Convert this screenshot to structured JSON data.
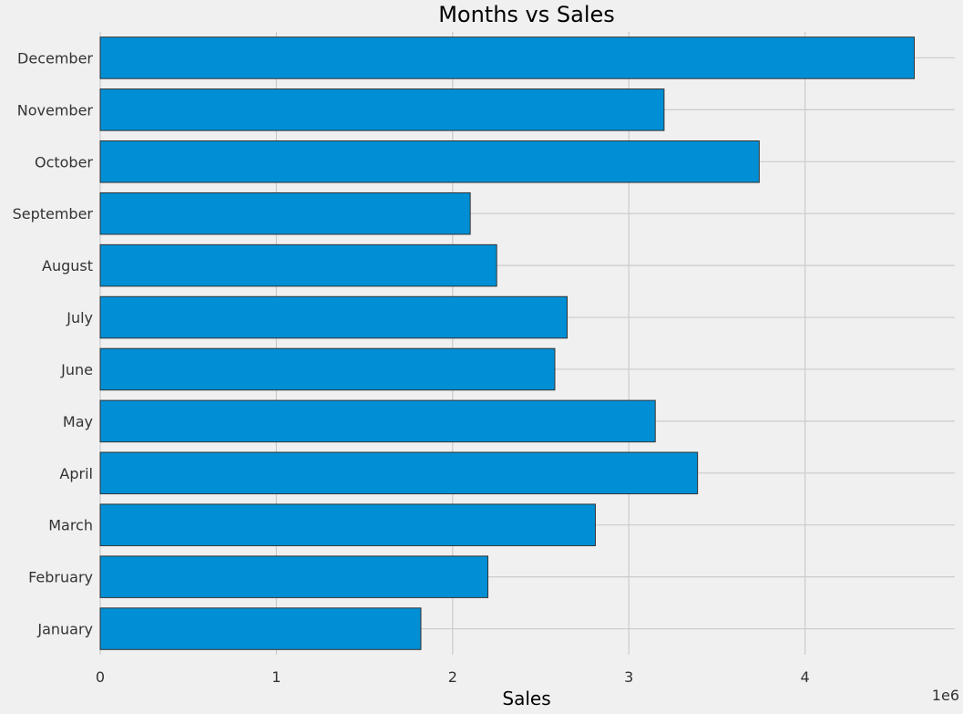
{
  "chart_data": {
    "type": "bar",
    "orientation": "horizontal",
    "title": "Months vs Sales",
    "xlabel": "Sales",
    "ylabel": "",
    "x_offset_label": "1e6",
    "xlim": [
      0,
      4850000
    ],
    "xticks": [
      0,
      1000000,
      2000000,
      3000000,
      4000000
    ],
    "xtick_labels": [
      "0",
      "1",
      "2",
      "3",
      "4"
    ],
    "categories": [
      "January",
      "February",
      "March",
      "April",
      "May",
      "June",
      "July",
      "August",
      "September",
      "October",
      "November",
      "December"
    ],
    "values": [
      1820000,
      2200000,
      2810000,
      3390000,
      3150000,
      2580000,
      2650000,
      2250000,
      2100000,
      3740000,
      3200000,
      4620000
    ],
    "bar_color": "#008fd5",
    "edge_color": "#333333",
    "background": "#f0f0f0",
    "grid": true,
    "legend": "none"
  }
}
